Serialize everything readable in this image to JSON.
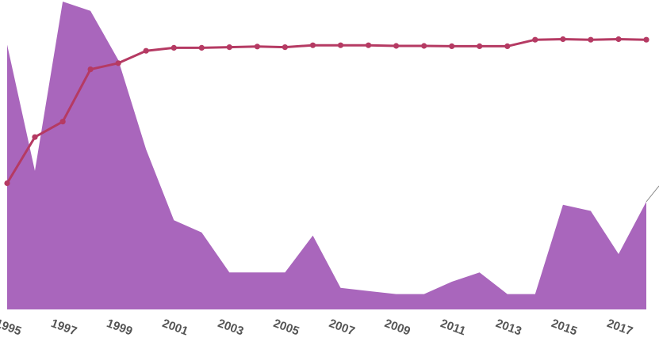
{
  "chart_data": {
    "type": "line",
    "title": "",
    "xlabel": "",
    "ylabel": "",
    "x": [
      1995,
      1996,
      1997,
      1998,
      1999,
      2000,
      2001,
      2002,
      2003,
      2004,
      2005,
      2006,
      2007,
      2008,
      2009,
      2010,
      2011,
      2012,
      2013,
      2014,
      2015,
      2016,
      2017,
      2018
    ],
    "x_tick_labels": [
      "1995",
      "1997",
      "1999",
      "2001",
      "2003",
      "2005",
      "2007",
      "2009",
      "2011",
      "2013",
      "2015",
      "2017"
    ],
    "xlim": [
      1995,
      2018
    ],
    "grid": false,
    "legend": "none",
    "series": [
      {
        "kind": "area",
        "color": "#a966bc",
        "values": [
          86,
          45,
          100,
          97,
          81,
          52,
          29,
          25,
          12,
          12,
          12,
          24,
          7,
          6,
          5,
          5,
          9,
          12,
          5,
          5,
          34,
          32,
          18,
          35
        ],
        "ylim": [
          0,
          100
        ]
      },
      {
        "kind": "line",
        "color": "#b53a63",
        "values": [
          41,
          56,
          61,
          78,
          80,
          84,
          85,
          85,
          85.2,
          85.4,
          85.2,
          85.8,
          85.8,
          85.8,
          85.6,
          85.6,
          85.5,
          85.5,
          85.5,
          87.6,
          87.8,
          87.6,
          87.8,
          87.6
        ],
        "ylim": [
          0,
          100
        ]
      }
    ]
  }
}
